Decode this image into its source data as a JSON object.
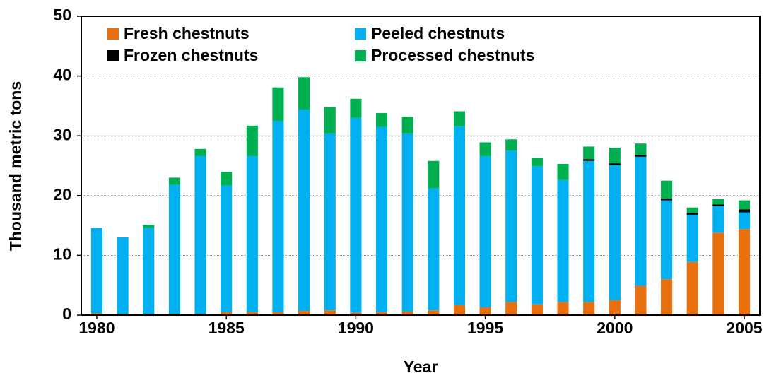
{
  "chart_data": {
    "type": "bar",
    "stacked": true,
    "x_label": "Year",
    "y_label": "Thousand metric tons",
    "x": [
      1980,
      1981,
      1982,
      1983,
      1984,
      1985,
      1986,
      1987,
      1988,
      1989,
      1990,
      1991,
      1992,
      1993,
      1994,
      1995,
      1996,
      1997,
      1998,
      1999,
      2000,
      2001,
      2002,
      2003,
      2004,
      2005
    ],
    "xlim": [
      1979.4,
      2005.6
    ],
    "xticks": [
      1980,
      1985,
      1990,
      1995,
      2000,
      2005
    ],
    "ylim": [
      0,
      50
    ],
    "yticks": [
      0,
      10,
      20,
      30,
      40,
      50
    ],
    "grid": true,
    "legend": "upper left",
    "series": [
      {
        "name": "Fresh chestnuts",
        "color": "#e8700f",
        "values": [
          0.3,
          0.2,
          0.2,
          0.2,
          0.2,
          0.5,
          0.5,
          0.5,
          0.7,
          0.8,
          0.4,
          0.5,
          0.6,
          0.8,
          1.7,
          1.3,
          2.2,
          1.8,
          2.2,
          2.2,
          2.5,
          4.9,
          6.0,
          8.9,
          13.8,
          14.4
        ]
      },
      {
        "name": "Peeled chestnuts",
        "color": "#00b0f0",
        "values": [
          14.3,
          12.8,
          14.4,
          21.6,
          26.4,
          21.2,
          26.1,
          32.0,
          33.7,
          29.6,
          32.6,
          31.0,
          29.8,
          20.4,
          29.9,
          25.3,
          25.3,
          23.1,
          20.4,
          23.6,
          22.6,
          21.6,
          13.2,
          7.9,
          4.4,
          2.8
        ]
      },
      {
        "name": "Frozen chestnuts",
        "color": "#000000",
        "values": [
          0,
          0,
          0,
          0,
          0,
          0,
          0,
          0,
          0,
          0,
          0,
          0,
          0,
          0,
          0,
          0,
          0,
          0,
          0,
          0.3,
          0.3,
          0.3,
          0.3,
          0.3,
          0.3,
          0.5
        ]
      },
      {
        "name": "Processed chestnuts",
        "color": "#00b050",
        "values": [
          0,
          0,
          0.5,
          1.2,
          1.2,
          2.3,
          5.1,
          5.6,
          5.4,
          4.4,
          3.2,
          2.3,
          2.8,
          4.6,
          2.5,
          2.3,
          1.9,
          1.4,
          2.7,
          2.1,
          2.6,
          1.9,
          3.0,
          0.9,
          0.9,
          1.5
        ]
      }
    ]
  }
}
